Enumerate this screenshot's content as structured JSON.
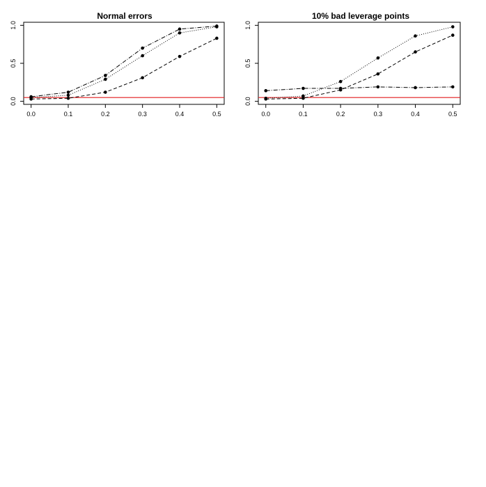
{
  "chart_data": [
    {
      "type": "line",
      "title": "Normal errors",
      "xlabel": "",
      "ylabel": "",
      "x": [
        0.0,
        0.1,
        0.2,
        0.3,
        0.4,
        0.5
      ],
      "xticks": [
        "0.0",
        "0.1",
        "0.2",
        "0.3",
        "0.4",
        "0.5"
      ],
      "yticks": [
        "0.0",
        "0.5",
        "1.0"
      ],
      "xlim": [
        0.0,
        0.5
      ],
      "ylim": [
        0.0,
        1.0
      ],
      "grid": false,
      "reference_line": {
        "y": 0.05,
        "color": "#e31a1c"
      },
      "series": [
        {
          "values": [
            0.03,
            0.04,
            0.12,
            0.31,
            0.59,
            0.83
          ],
          "line_style": "dashed",
          "color": "#000000"
        },
        {
          "values": [
            0.05,
            0.08,
            0.29,
            0.6,
            0.9,
            0.98
          ],
          "line_style": "dotted",
          "color": "#000000"
        },
        {
          "values": [
            0.06,
            0.12,
            0.34,
            0.7,
            0.95,
            0.99
          ],
          "line_style": "dotdash",
          "color": "#000000"
        }
      ]
    },
    {
      "type": "line",
      "title": "10% bad leverage points",
      "xlabel": "",
      "ylabel": "",
      "x": [
        0.0,
        0.1,
        0.2,
        0.3,
        0.4,
        0.5
      ],
      "xticks": [
        "0.0",
        "0.1",
        "0.2",
        "0.3",
        "0.4",
        "0.5"
      ],
      "yticks": [
        "0.0",
        "0.5",
        "1.0"
      ],
      "xlim": [
        0.0,
        0.5
      ],
      "ylim": [
        0.0,
        1.0
      ],
      "grid": false,
      "reference_line": {
        "y": 0.05,
        "color": "#e31a1c"
      },
      "series": [
        {
          "values": [
            0.03,
            0.04,
            0.15,
            0.36,
            0.65,
            0.87
          ],
          "line_style": "dashed",
          "color": "#000000"
        },
        {
          "values": [
            0.04,
            0.07,
            0.26,
            0.57,
            0.86,
            0.98
          ],
          "line_style": "dotted",
          "color": "#000000"
        },
        {
          "values": [
            0.14,
            0.17,
            0.17,
            0.19,
            0.18,
            0.19
          ],
          "line_style": "dotdash",
          "color": "#000000"
        }
      ]
    }
  ]
}
